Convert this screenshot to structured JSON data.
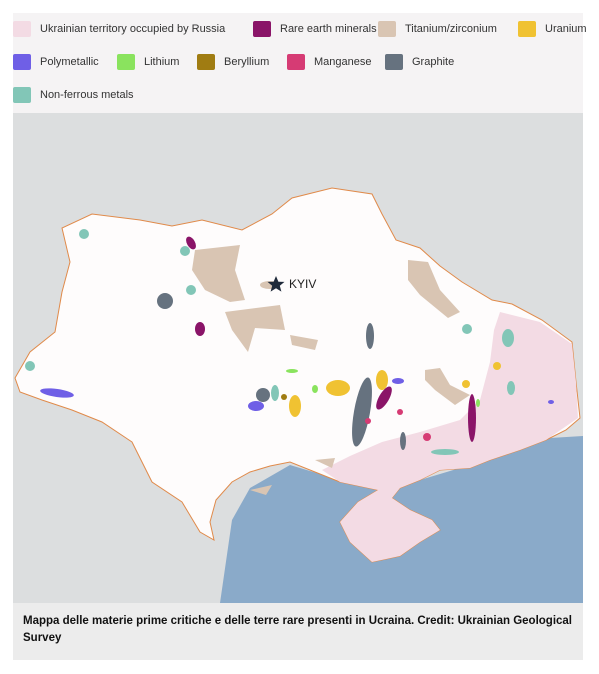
{
  "legend": {
    "items": [
      {
        "label": "Ukrainian territory occupied by Russia",
        "color": "#f3dbe4"
      },
      {
        "label": "Rare earth minerals",
        "color": "#8a1468"
      },
      {
        "label": "Titanium/zirconium",
        "color": "#d9c5b3"
      },
      {
        "label": "Uranium",
        "color": "#f0c232"
      },
      {
        "label": "Polymetallic",
        "color": "#6f5fe6"
      },
      {
        "label": "Lithium",
        "color": "#8ae35e"
      },
      {
        "label": "Beryllium",
        "color": "#a07c12"
      },
      {
        "label": "Manganese",
        "color": "#d63b74"
      },
      {
        "label": "Graphite",
        "color": "#66727f"
      },
      {
        "label": "Non-ferrous metals",
        "color": "#82c6b7"
      }
    ]
  },
  "map": {
    "city": "KYIV"
  },
  "caption": "Mappa delle materie prime critiche e delle terre rare presenti in Ucraina. Credit: Ukrainian Geological Survey"
}
